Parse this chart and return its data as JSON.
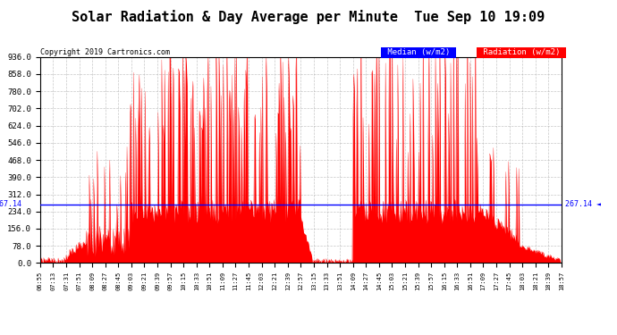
{
  "title": "Solar Radiation & Day Average per Minute  Tue Sep 10 19:09",
  "copyright": "Copyright 2019 Cartronics.com",
  "median_value": 267.14,
  "median_label": "Median (w/m2)",
  "radiation_label": "Radiation (w/m2)",
  "y_min": 0.0,
  "y_max": 936.0,
  "y_ticks": [
    0.0,
    78.0,
    156.0,
    234.0,
    312.0,
    390.0,
    468.0,
    546.0,
    624.0,
    702.0,
    780.0,
    858.0,
    936.0
  ],
  "background_color": "#ffffff",
  "grid_color": "#b0b0b0",
  "bar_color": "#ff0000",
  "median_color": "#0000ff",
  "title_color": "#000000",
  "title_fontsize": 11,
  "copyright_fontsize": 6,
  "median_box_color": "#0000ff",
  "radiation_box_color": "#ff0000",
  "x_tick_labels": [
    "06:55",
    "07:13",
    "07:31",
    "07:51",
    "08:09",
    "08:27",
    "08:45",
    "09:03",
    "09:21",
    "09:39",
    "09:57",
    "10:15",
    "10:33",
    "10:51",
    "11:09",
    "11:27",
    "11:45",
    "12:03",
    "12:21",
    "12:39",
    "12:57",
    "13:15",
    "13:33",
    "13:51",
    "14:09",
    "14:27",
    "14:45",
    "15:03",
    "15:21",
    "15:39",
    "15:57",
    "16:15",
    "16:33",
    "16:51",
    "17:09",
    "17:27",
    "17:45",
    "18:03",
    "18:21",
    "18:39",
    "18:57"
  ]
}
